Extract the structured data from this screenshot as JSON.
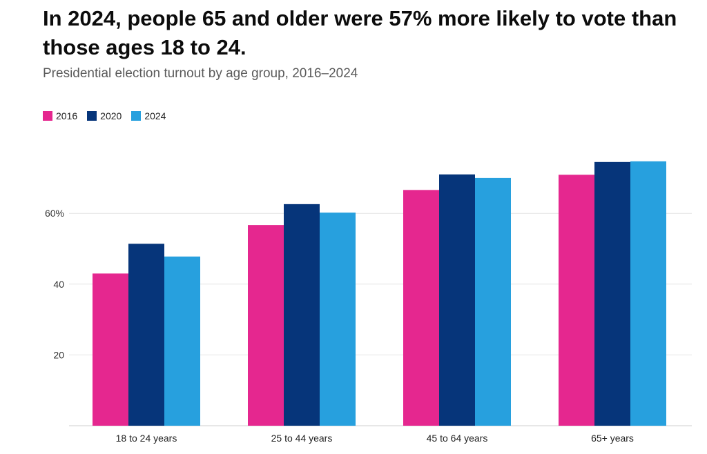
{
  "header": {
    "title": "In 2024, people 65 and older were 57% more likely to vote than those ages 18 to 24.",
    "subtitle": "Presidential election turnout by age group, 2016–2024"
  },
  "chart_data": {
    "type": "bar",
    "title": "In 2024, people 65 and older were 57% more likely to vote than those ages 18 to 24.",
    "subtitle": "Presidential election turnout by age group, 2016–2024",
    "categories": [
      "18 to 24 years",
      "25 to 44 years",
      "45 to 64 years",
      "65+ years"
    ],
    "series": [
      {
        "name": "2016",
        "color": "#e5278f",
        "values": [
          43,
          56.7,
          66.6,
          70.9
        ]
      },
      {
        "name": "2020",
        "color": "#06357a",
        "values": [
          51.4,
          62.6,
          71.0,
          74.5
        ]
      },
      {
        "name": "2024",
        "color": "#27a0de",
        "values": [
          47.8,
          60.2,
          70.0,
          74.7
        ]
      }
    ],
    "yticks": [
      20,
      40,
      60
    ],
    "ytick_labels": [
      "20",
      "40",
      "60%"
    ],
    "ylim": [
      0,
      80
    ],
    "grid": true,
    "legend_position": "top-left"
  }
}
